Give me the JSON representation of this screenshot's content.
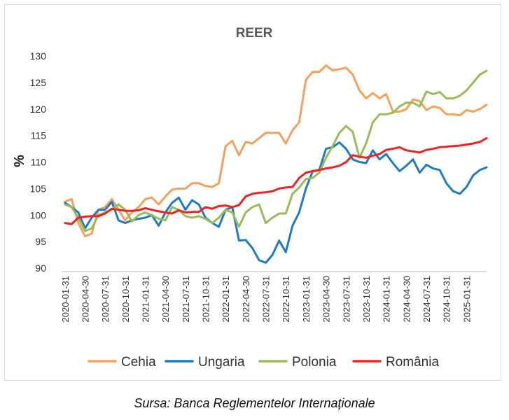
{
  "source": "Sursa: Banca Reglementelor Internaționale",
  "chart_data": {
    "type": "line",
    "title": "REER",
    "ylabel": "%",
    "xlabel": "",
    "ylim": [
      90,
      130
    ],
    "yticks": [
      90,
      95,
      100,
      105,
      110,
      115,
      120,
      125,
      130
    ],
    "grid": false,
    "legend_position": "bottom",
    "x": [
      "2020-01-31",
      "2020-02-29",
      "2020-03-31",
      "2020-04-30",
      "2020-05-31",
      "2020-06-30",
      "2020-07-31",
      "2020-08-31",
      "2020-09-30",
      "2020-10-31",
      "2020-11-30",
      "2020-12-31",
      "2021-01-31",
      "2021-02-28",
      "2021-03-31",
      "2021-04-30",
      "2021-05-31",
      "2021-06-30",
      "2021-07-31",
      "2021-08-31",
      "2021-09-30",
      "2021-10-31",
      "2021-11-30",
      "2021-12-31",
      "2022-01-31",
      "2022-02-28",
      "2022-03-31",
      "2022-04-30",
      "2022-05-31",
      "2022-06-30",
      "2022-07-31",
      "2022-08-31",
      "2022-09-30",
      "2022-10-31",
      "2022-11-30",
      "2022-12-31",
      "2023-01-31",
      "2023-02-28",
      "2023-03-31",
      "2023-04-30",
      "2023-05-31",
      "2023-06-30",
      "2023-07-31",
      "2023-08-31",
      "2023-09-30",
      "2023-10-31",
      "2023-11-30",
      "2023-12-31",
      "2024-01-31",
      "2024-02-29",
      "2024-03-31",
      "2024-04-30",
      "2024-05-31",
      "2024-06-30",
      "2024-07-31",
      "2024-08-31",
      "2024-09-30",
      "2024-10-31",
      "2024-11-30",
      "2024-12-31",
      "2025-01-31",
      "2025-02-28",
      "2025-03-31",
      "2025-04-30"
    ],
    "x_tick_labels": [
      "2020-01-31",
      "2020-04-30",
      "2020-07-31",
      "2020-10-31",
      "2021-01-31",
      "2021-04-30",
      "2021-07-31",
      "2021-10-31",
      "2022-01-31",
      "2022-04-30",
      "2022-07-31",
      "2022-10-31",
      "2023-01-31",
      "2023-04-30",
      "2023-07-31",
      "2023-10-31",
      "2024-01-31",
      "2024-04-30",
      "2024-07-31",
      "2024-10-31",
      "2025-01-31"
    ],
    "series": [
      {
        "name": "Cehia",
        "color": "#f4a15d",
        "values": [
          102.5,
          103,
          98.5,
          96,
          96.5,
          101,
          101.5,
          103,
          101,
          99,
          100.5,
          101.5,
          103,
          103.3,
          102,
          103.5,
          104.8,
          105,
          105,
          106,
          106,
          105.5,
          105.3,
          106,
          113,
          114,
          111.3,
          113.8,
          113.5,
          114.5,
          115.5,
          115.5,
          115.5,
          113.5,
          116,
          117.5,
          125.5,
          127,
          127,
          128.2,
          127.3,
          127.5,
          127.8,
          126.5,
          123.5,
          122,
          123,
          122,
          122.8,
          119.5,
          119.5,
          120,
          121.8,
          121.5,
          119.8,
          120.5,
          120.2,
          119,
          119,
          118.8,
          119.8,
          119.5,
          120,
          120.8
        ]
      },
      {
        "name": "Ungaria",
        "color": "#1f7cc1",
        "values": [
          102.3,
          101.5,
          100.5,
          97.5,
          99.5,
          101,
          101,
          102.5,
          99,
          98.5,
          99,
          99.3,
          99.5,
          100,
          98,
          100.5,
          102.3,
          103.3,
          101,
          102.8,
          102,
          99.5,
          98.5,
          97.8,
          101,
          101.5,
          95.2,
          95.3,
          93.8,
          91.5,
          91,
          92.5,
          95.2,
          93,
          98,
          100.5,
          105,
          108.2,
          108.5,
          112.5,
          112.8,
          113.7,
          112.5,
          110.5,
          110,
          109.8,
          112.2,
          110.5,
          111.5,
          109.8,
          108.3,
          109.3,
          110.5,
          108,
          109.5,
          108.8,
          108.5,
          106,
          104.5,
          104,
          105.3,
          107.5,
          108.5,
          109
        ]
      },
      {
        "name": "Polonia",
        "color": "#9bbb59",
        "values": [
          102,
          101.5,
          99.5,
          97,
          97.5,
          100,
          100.5,
          101,
          102,
          101,
          98.8,
          100,
          100.5,
          100,
          99.3,
          99,
          101.5,
          101,
          99.8,
          99.5,
          99.8,
          99.3,
          98.5,
          99.5,
          101,
          100.5,
          97.8,
          100.5,
          101.5,
          102,
          98.5,
          99.5,
          100.3,
          100.3,
          104,
          105.2,
          106.8,
          107,
          108,
          110.8,
          113,
          115.5,
          116.8,
          115.7,
          110.8,
          113.5,
          117.5,
          119,
          119,
          119.3,
          120.5,
          121.2,
          121.2,
          120.5,
          123.3,
          122.8,
          123.2,
          122,
          122,
          122.5,
          123.5,
          125,
          126.5,
          127.2
        ]
      },
      {
        "name": "România",
        "color": "#ee2222",
        "values": [
          98.5,
          98.3,
          99.5,
          99.7,
          99.8,
          99.8,
          100.3,
          101.2,
          101,
          100.8,
          100.8,
          100.9,
          101.3,
          101,
          100.7,
          100.5,
          100.3,
          100.9,
          100.5,
          100.6,
          100.6,
          101.5,
          101.2,
          101.7,
          101.8,
          101.5,
          101.9,
          103.5,
          104,
          104.2,
          104.3,
          104.5,
          105,
          105.2,
          105.3,
          107,
          108,
          108.3,
          108.5,
          108.8,
          109,
          109.3,
          110,
          111.3,
          111,
          110.8,
          111.2,
          111.5,
          112.3,
          112.5,
          112.8,
          112.2,
          112,
          111.8,
          112.3,
          112.5,
          112.8,
          112.9,
          113,
          113.1,
          113.3,
          113.5,
          113.8,
          114.5
        ]
      }
    ]
  }
}
